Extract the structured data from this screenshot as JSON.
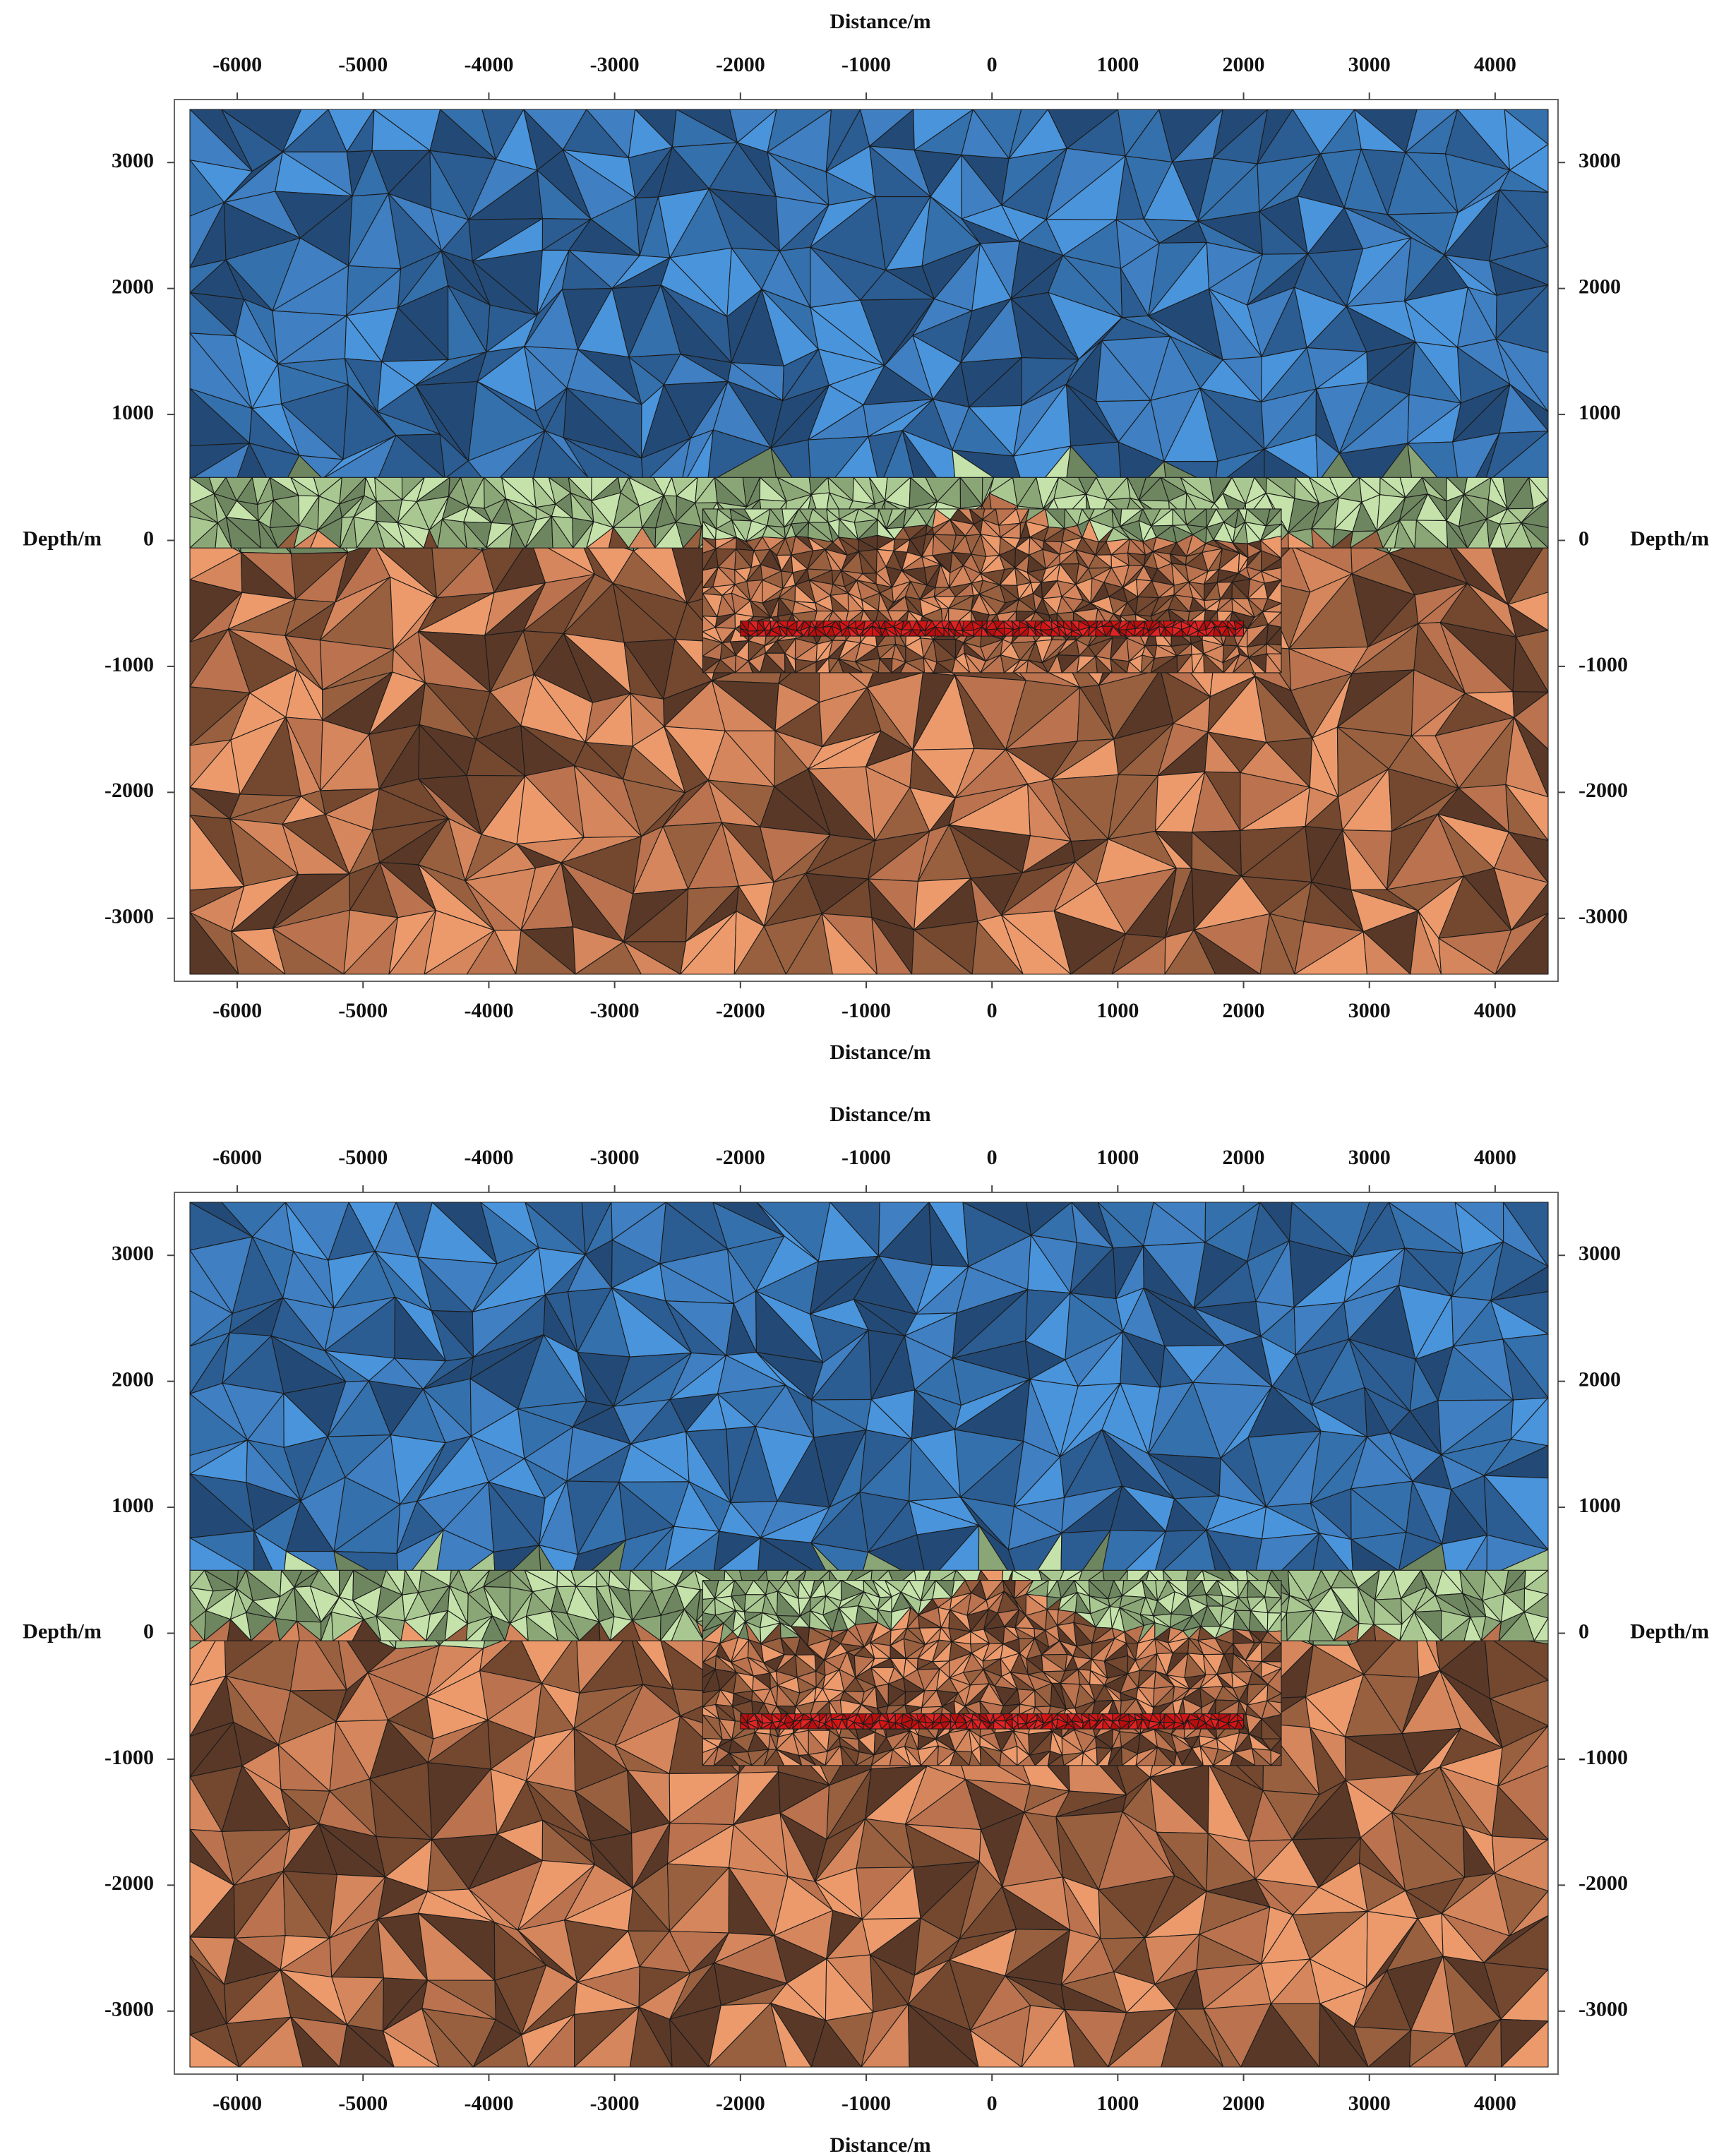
{
  "chart_data": [
    {
      "type": "mesh",
      "x_label": "Distance/m",
      "y_label": "Depth/m",
      "xlim": [
        -6500,
        4500
      ],
      "ylim": [
        -3500,
        3500
      ],
      "xticks": [
        -6000,
        -5000,
        -4000,
        -3000,
        -2000,
        -1000,
        0,
        1000,
        2000,
        3000,
        4000
      ],
      "yticks": [
        -3000,
        -2000,
        -1000,
        0,
        1000,
        2000,
        3000
      ]
    },
    {
      "type": "mesh",
      "x_label": "Distance/m",
      "y_label": "Depth/m",
      "xlim": [
        -6500,
        4500
      ],
      "ylim": [
        -3500,
        3500
      ],
      "xticks": [
        -6000,
        -5000,
        -4000,
        -3000,
        -2000,
        -1000,
        0,
        1000,
        2000,
        3000,
        4000
      ],
      "yticks": [
        -3000,
        -2000,
        -1000,
        0,
        1000,
        2000,
        3000
      ]
    }
  ]
}
